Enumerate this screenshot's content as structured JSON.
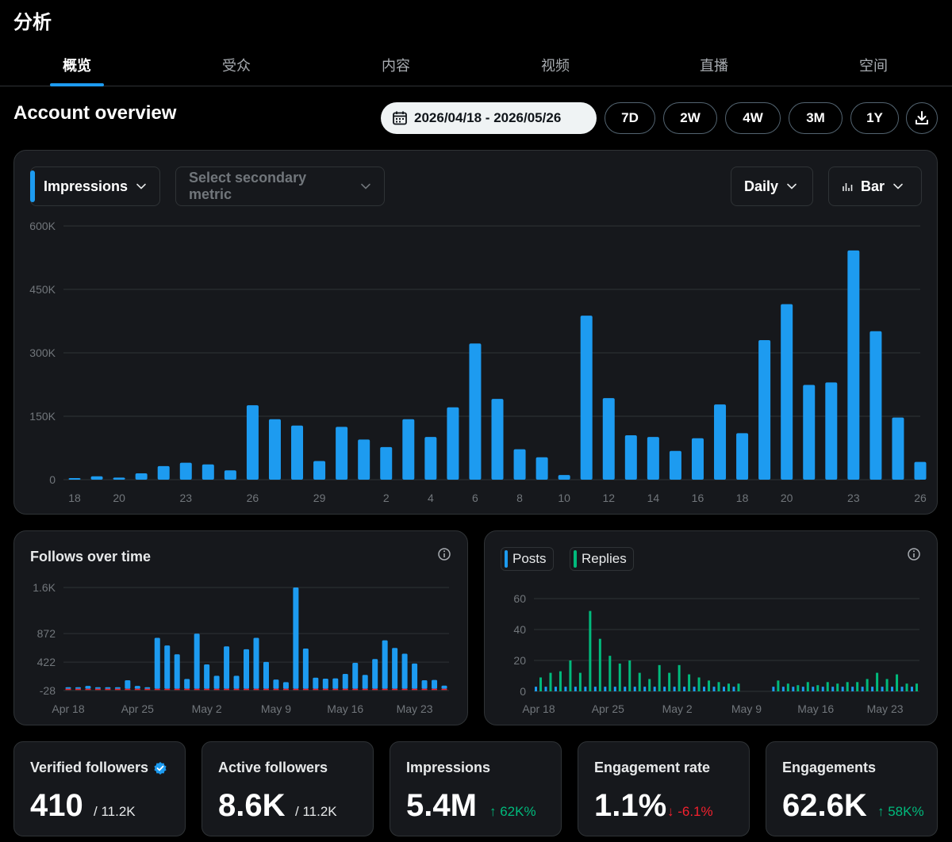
{
  "header": {
    "title": "分析"
  },
  "tabs": [
    {
      "label": "概览",
      "active": true
    },
    {
      "label": "受众",
      "active": false
    },
    {
      "label": "内容",
      "active": false
    },
    {
      "label": "视频",
      "active": false
    },
    {
      "label": "直播",
      "active": false
    },
    {
      "label": "空间",
      "active": false
    }
  ],
  "overview": {
    "title": "Account overview",
    "date_range": "2026/04/18 - 2026/05/26",
    "periods": [
      "7D",
      "2W",
      "4W",
      "3M",
      "1Y"
    ]
  },
  "main_chart": {
    "primary_metric": "Impressions",
    "secondary_metric_placeholder": "Select secondary metric",
    "granularity": "Daily",
    "chart_type": "Bar"
  },
  "follows": {
    "title": "Follows over time"
  },
  "posts_legend": {
    "posts": "Posts",
    "replies": "Replies"
  },
  "stats": [
    {
      "label": "Verified followers",
      "value": "410",
      "sub": "/ 11.2K",
      "verified": true
    },
    {
      "label": "Active followers",
      "value": "8.6K",
      "sub": "/ 11.2K"
    },
    {
      "label": "Impressions",
      "value": "5.4M",
      "delta": "↑ 62K%",
      "trend": "up"
    },
    {
      "label": "Engagement rate",
      "value": "1.1%",
      "delta": "↓ -6.1%",
      "trend": "down"
    },
    {
      "label": "Engagements",
      "value": "62.6K",
      "delta": "↑ 58K%",
      "trend": "up"
    }
  ],
  "colors": {
    "accent": "#1d9bf0",
    "green": "#00ba7c",
    "red": "#f4212e",
    "card": "#16181c",
    "border": "#2f3336"
  },
  "chart_data": [
    {
      "type": "bar",
      "title": "",
      "xlabel": "",
      "ylabel": "",
      "ylim": [
        0,
        600000
      ],
      "y_ticks": [
        "0",
        "150K",
        "300K",
        "450K",
        "600K"
      ],
      "x_tick_labels": [
        "18",
        "20",
        "23",
        "26",
        "29",
        "2",
        "4",
        "6",
        "8",
        "10",
        "12",
        "14",
        "16",
        "18",
        "20",
        "23",
        "26"
      ],
      "categories": [
        "04/18",
        "04/19",
        "04/20",
        "04/21",
        "04/22",
        "04/23",
        "04/24",
        "04/25",
        "04/26",
        "04/27",
        "04/28",
        "04/29",
        "04/30",
        "05/01",
        "05/02",
        "05/03",
        "05/04",
        "05/05",
        "05/06",
        "05/07",
        "05/08",
        "05/09",
        "05/10",
        "05/11",
        "05/12",
        "05/13",
        "05/14",
        "05/15",
        "05/16",
        "05/17",
        "05/18",
        "05/19",
        "05/20",
        "05/21",
        "05/22",
        "05/23",
        "05/24",
        "05/25",
        "05/26"
      ],
      "series": [
        {
          "values": [
            2000,
            8000,
            5000,
            15000,
            32000,
            40000,
            36000,
            22000,
            176000,
            143000,
            128000,
            44000,
            125000,
            95000,
            77000,
            143000,
            101000,
            171000,
            322000,
            191000,
            72000,
            53000,
            11000,
            388000,
            193000,
            105000,
            101000,
            68000,
            98000,
            178000,
            110000,
            330000,
            415000,
            224000,
            230000,
            542000,
            351000,
            147000,
            42000
          ]
        }
      ]
    },
    {
      "type": "bar",
      "title": "Follows over time",
      "ylim": [
        -28,
        1600
      ],
      "y_ticks": [
        "-28",
        "422",
        "872",
        "1.6K"
      ],
      "x_tick_labels": [
        "Apr 18",
        "Apr 25",
        "May 2",
        "May 9",
        "May 16",
        "May 23"
      ],
      "series": [
        {
          "values": [
            -6,
            20,
            45,
            16,
            8,
            10,
            135,
            45,
            26,
            805,
            685,
            545,
            155,
            870,
            385,
            205,
            670,
            205,
            625,
            805,
            425,
            145,
            105,
            1600,
            635,
            175,
            160,
            165,
            235,
            410,
            220,
            470,
            765,
            645,
            555,
            400,
            135,
            140,
            50
          ]
        },
        {
          "values": [
            -10,
            -10,
            -12,
            -8,
            -8,
            -10,
            -10,
            -15,
            -12,
            -8,
            -10,
            -8,
            -10,
            -10,
            -12,
            -8,
            -10,
            -15,
            -12,
            -8,
            -12,
            -10,
            -8,
            -10,
            -12,
            -8,
            -10,
            -12,
            -10,
            -8,
            -10,
            -12,
            -8,
            -10,
            -12,
            -10,
            -8,
            -10,
            -12
          ]
        }
      ]
    },
    {
      "type": "bar",
      "title": "",
      "ylim": [
        0,
        60
      ],
      "y_ticks": [
        "0",
        "20",
        "40",
        "60"
      ],
      "x_tick_labels": [
        "Apr 18",
        "Apr 25",
        "May 2",
        "May 9",
        "May 16",
        "May 23"
      ],
      "series": [
        {
          "name": "Posts",
          "values": [
            1,
            1,
            1,
            1,
            1,
            1,
            1,
            1,
            1,
            1,
            1,
            1,
            1,
            1,
            1,
            1,
            1,
            1,
            1,
            1,
            1,
            0,
            0,
            0,
            1,
            1,
            1,
            1,
            1,
            1,
            1,
            1,
            1,
            1,
            1,
            1,
            1,
            1,
            1
          ]
        },
        {
          "name": "Replies",
          "values": [
            9,
            12,
            13,
            20,
            12,
            52,
            34,
            23,
            18,
            20,
            12,
            8,
            17,
            12,
            17,
            11,
            9,
            7,
            6,
            5,
            5,
            0,
            0,
            0,
            7,
            5,
            4,
            6,
            4,
            6,
            5,
            6,
            6,
            8,
            12,
            8,
            11,
            5,
            5
          ]
        }
      ]
    }
  ]
}
